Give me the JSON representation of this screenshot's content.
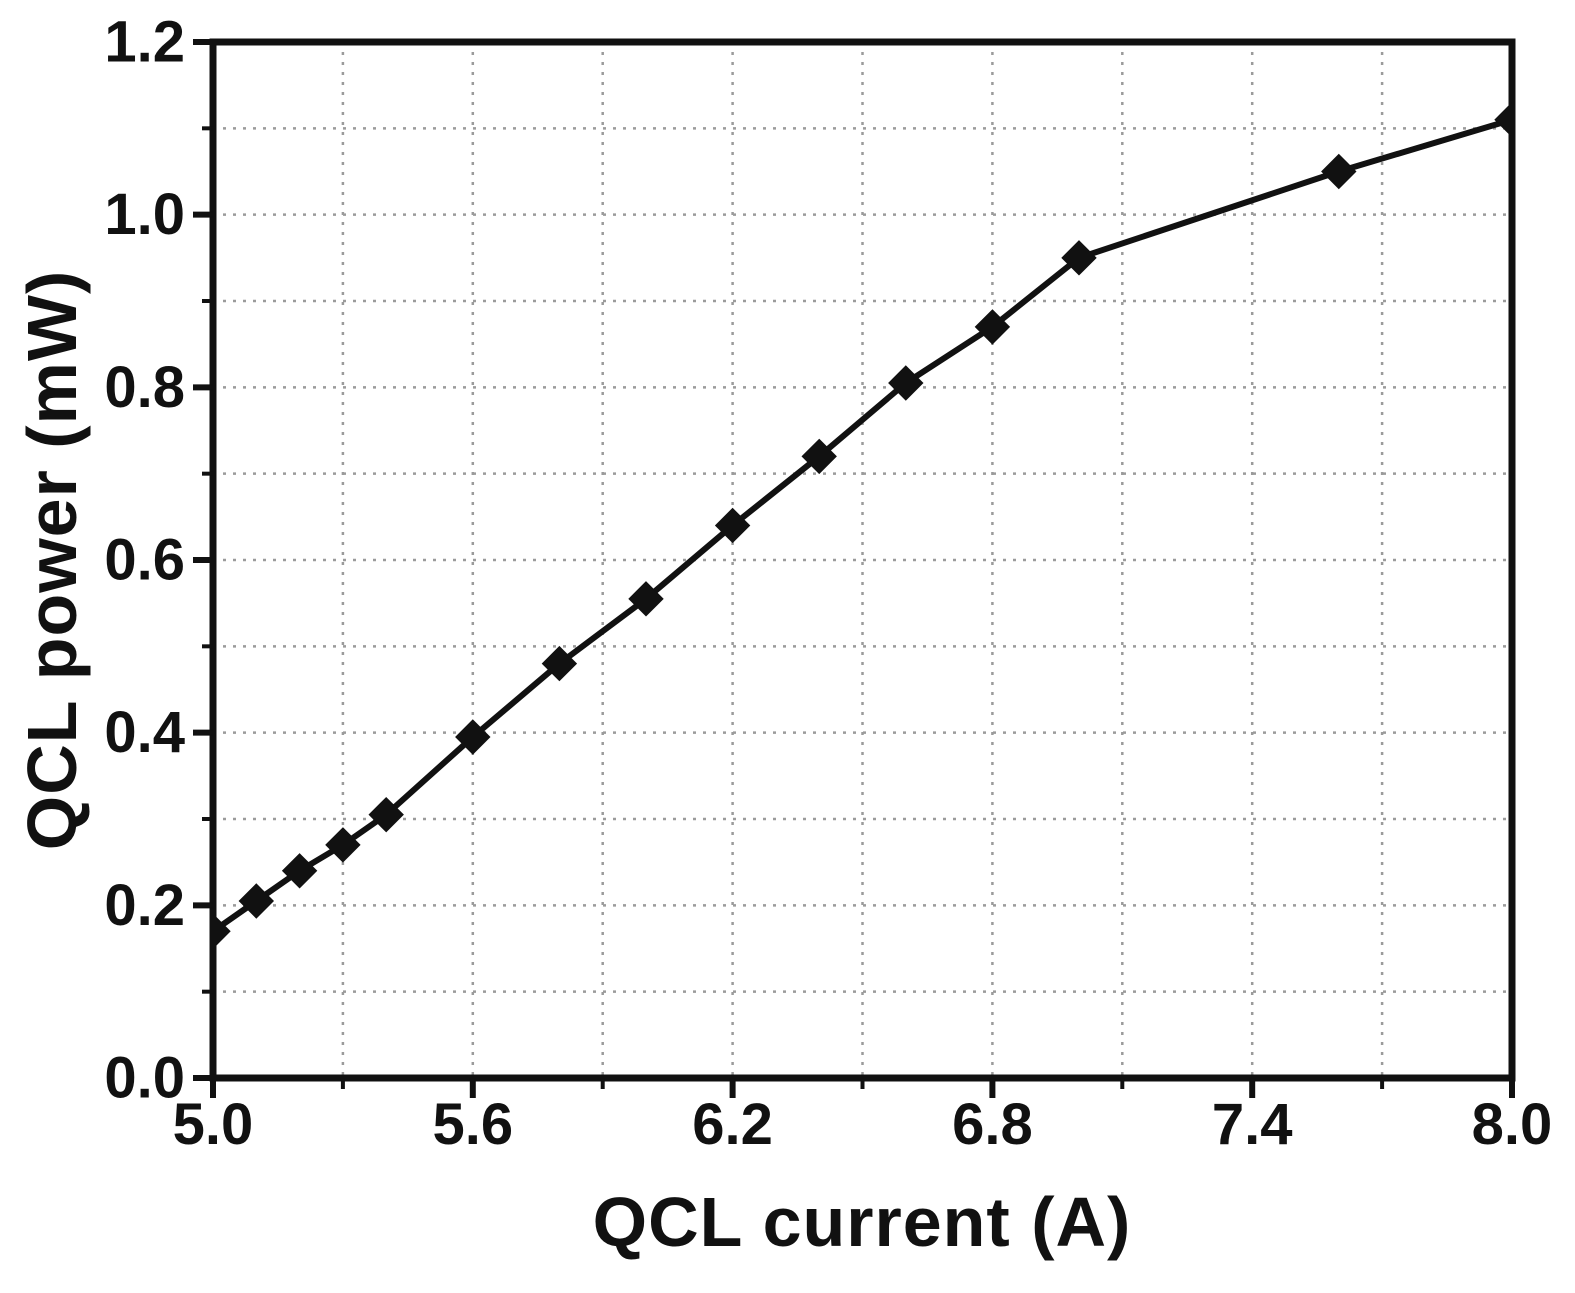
{
  "chart_data": {
    "type": "line",
    "title": "",
    "xlabel": "QCL current (A)",
    "ylabel": "QCL power (mW)",
    "xlim": [
      5.0,
      8.0
    ],
    "ylim": [
      0.0,
      1.2
    ],
    "x_ticks": [
      5.0,
      5.6,
      6.2,
      6.8,
      7.4,
      8.0
    ],
    "x_tick_labels": [
      "5.0",
      "5.6",
      "6.2",
      "6.8",
      "7.4",
      "8.0"
    ],
    "y_ticks": [
      0.0,
      0.2,
      0.4,
      0.6,
      0.8,
      1.0,
      1.2
    ],
    "y_tick_labels": [
      "0.0",
      "0.2",
      "0.4",
      "0.6",
      "0.8",
      "1.0",
      "1.2"
    ],
    "x_minor_step": 0.3,
    "y_minor_step": 0.1,
    "grid": true,
    "legend": "none",
    "series": [
      {
        "name": "QCL power",
        "marker": "diamond",
        "line_style": "solid",
        "x": [
          5.0,
          5.1,
          5.2,
          5.3,
          5.4,
          5.6,
          5.8,
          6.0,
          6.2,
          6.4,
          6.6,
          6.8,
          7.0,
          7.6,
          8.0
        ],
        "y": [
          0.17,
          0.205,
          0.24,
          0.27,
          0.305,
          0.395,
          0.48,
          0.555,
          0.64,
          0.72,
          0.805,
          0.87,
          0.95,
          1.05,
          1.11
        ]
      }
    ]
  },
  "colors": {
    "line": "#111111",
    "marker": "#111111",
    "frame": "#111111",
    "grid": "#9b9b9b",
    "text": "#111111",
    "background": "#ffffff"
  }
}
